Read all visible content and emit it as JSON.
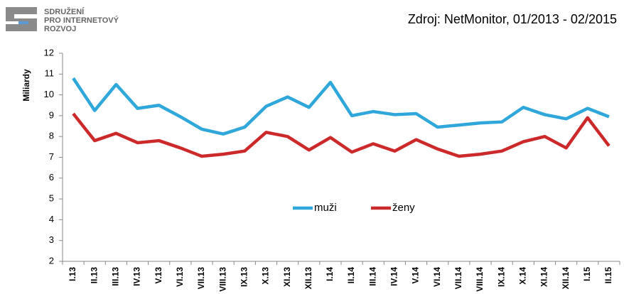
{
  "logo": [
    "SDRUŽENÍ",
    "PRO INTERNETOVÝ",
    "ROZVOJ"
  ],
  "chart_data": {
    "type": "line",
    "title": "Zdroj: NetMonitor, 01/2013 - 02/2015",
    "y_label": "Miliardy",
    "categories": [
      "I.13",
      "II.13",
      "III.13",
      "IV.13",
      "V.13",
      "VI.13",
      "VII.13",
      "VIII.13",
      "IX.13",
      "X.13",
      "XI.13",
      "XII.13",
      "I.14",
      "II.14",
      "III.14",
      "IV.14",
      "V.14",
      "VI.14",
      "VII.14",
      "VIII.14",
      "IX.14",
      "X.14",
      "XI.14",
      "XII.14",
      "I.15",
      "II.15"
    ],
    "series": [
      {
        "name": "muži",
        "color": "#2fa7da",
        "values": [
          10.8,
          9.25,
          10.5,
          9.35,
          9.5,
          8.95,
          8.35,
          8.12,
          8.45,
          9.45,
          9.9,
          9.4,
          10.6,
          9.0,
          9.2,
          9.05,
          9.1,
          8.45,
          8.55,
          8.65,
          8.7,
          9.4,
          9.05,
          8.85,
          9.35,
          8.95
        ]
      },
      {
        "name": "ženy",
        "color": "#cc2a2a",
        "values": [
          9.1,
          7.8,
          8.15,
          7.7,
          7.8,
          7.45,
          7.05,
          7.15,
          7.3,
          8.2,
          8.0,
          7.35,
          7.95,
          7.25,
          7.65,
          7.3,
          7.85,
          7.4,
          7.05,
          7.15,
          7.3,
          7.75,
          8.0,
          7.45,
          8.9,
          7.55
        ]
      }
    ],
    "ylim": [
      2,
      12
    ],
    "yticks": [
      2,
      3,
      4,
      5,
      6,
      7,
      8,
      9,
      10,
      11,
      12
    ],
    "grid": false,
    "legend": "center"
  }
}
